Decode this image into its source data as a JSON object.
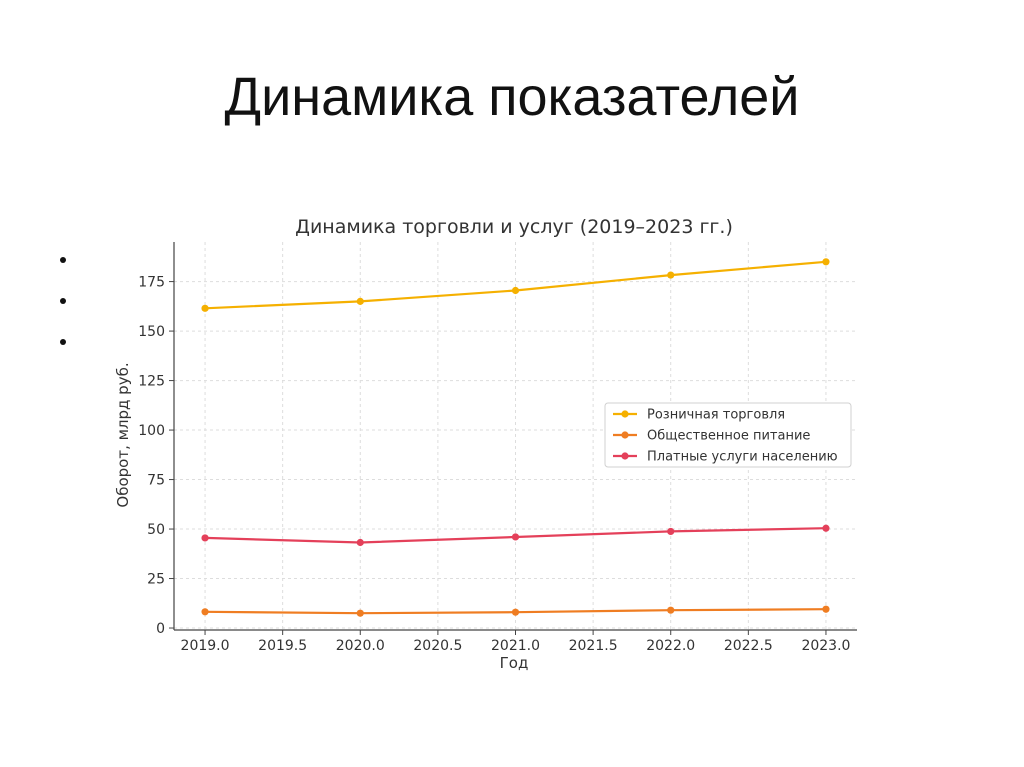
{
  "slide": {
    "title": "Динамика показателей",
    "bullets": [
      "",
      "",
      ""
    ]
  },
  "chart_data": {
    "type": "line",
    "title": "Динамика торговли и услуг (2019–2023 гг.)",
    "xlabel": "Год",
    "ylabel": "Оборот, млрд руб.",
    "x": [
      2019,
      2020,
      2021,
      2022,
      2023
    ],
    "xticks": [
      "2019.0",
      "2019.5",
      "2020.0",
      "2020.5",
      "2021.0",
      "2021.5",
      "2022.0",
      "2022.5",
      "2023.0"
    ],
    "xlim": [
      2018.8,
      2023.2
    ],
    "ylim": [
      -1,
      195
    ],
    "yticks": [
      "0",
      "25",
      "50",
      "75",
      "100",
      "125",
      "150",
      "175"
    ],
    "grid": true,
    "legend_position": "center-right",
    "series": [
      {
        "name": "Розничная торговля",
        "color": "#f5b000",
        "values": [
          161.5,
          165.0,
          170.5,
          178.3,
          185.0
        ]
      },
      {
        "name": "Общественное питание",
        "color": "#ef7d22",
        "values": [
          8.2,
          7.5,
          8.0,
          9.0,
          9.5
        ]
      },
      {
        "name": "Платные услуги населению",
        "color": "#e4405a",
        "values": [
          45.5,
          43.2,
          46.0,
          48.8,
          50.4
        ]
      }
    ]
  }
}
